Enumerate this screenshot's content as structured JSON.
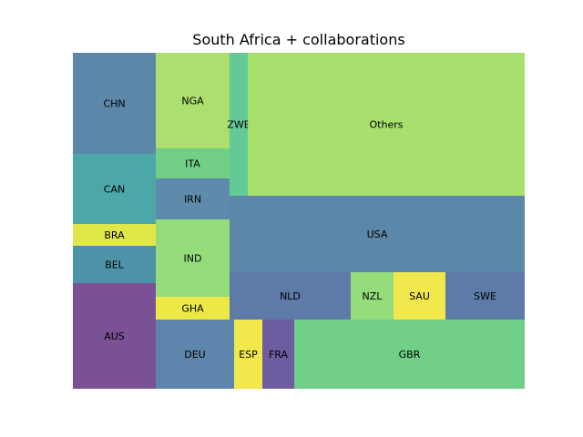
{
  "chart_data": {
    "type": "treemap",
    "title": "South Africa + collaborations",
    "items": [
      {
        "label": "CHN",
        "value": 9972,
        "color": "#4a7aa0"
      },
      {
        "label": "CAN",
        "value": 7042,
        "color": "#3a9da0"
      },
      {
        "label": "BRA",
        "value": 2200,
        "color": "#dde535"
      },
      {
        "label": "BEL",
        "value": 3732,
        "color": "#3c87a0"
      },
      {
        "label": "AUS",
        "value": 10531,
        "color": "#6a3e88"
      },
      {
        "label": "NGA",
        "value": 8496,
        "color": "#a3dc5e"
      },
      {
        "label": "ITA",
        "value": 2683,
        "color": "#62cb78"
      },
      {
        "label": "IRN",
        "value": 3656,
        "color": "#4c7ea2"
      },
      {
        "label": "IND",
        "value": 6902,
        "color": "#8ad86b"
      },
      {
        "label": "GHA",
        "value": 2050,
        "color": "#eae532"
      },
      {
        "label": "DEU",
        "value": 6313,
        "color": "#4c78a2"
      },
      {
        "label": "ZWE",
        "value": 3140,
        "color": "#52c38c"
      },
      {
        "label": "Others",
        "value": 47730,
        "color": "#9edd5e"
      },
      {
        "label": "USA",
        "value": 26040,
        "color": "#4a7aa0"
      },
      {
        "label": "NLD",
        "value": 6916,
        "color": "#4b6b9e"
      },
      {
        "label": "NZL",
        "value": 2444,
        "color": "#8ad86b"
      },
      {
        "label": "SAU",
        "value": 2964,
        "color": "#eee538"
      },
      {
        "label": "SWE",
        "value": 4524,
        "color": "#4b6b9e"
      },
      {
        "label": "ESP",
        "value": 2015,
        "color": "#eee538"
      },
      {
        "label": "FRA",
        "value": 2275,
        "color": "#5d4a95"
      },
      {
        "label": "GBR",
        "value": 16445,
        "color": "#62c97a"
      }
    ]
  }
}
